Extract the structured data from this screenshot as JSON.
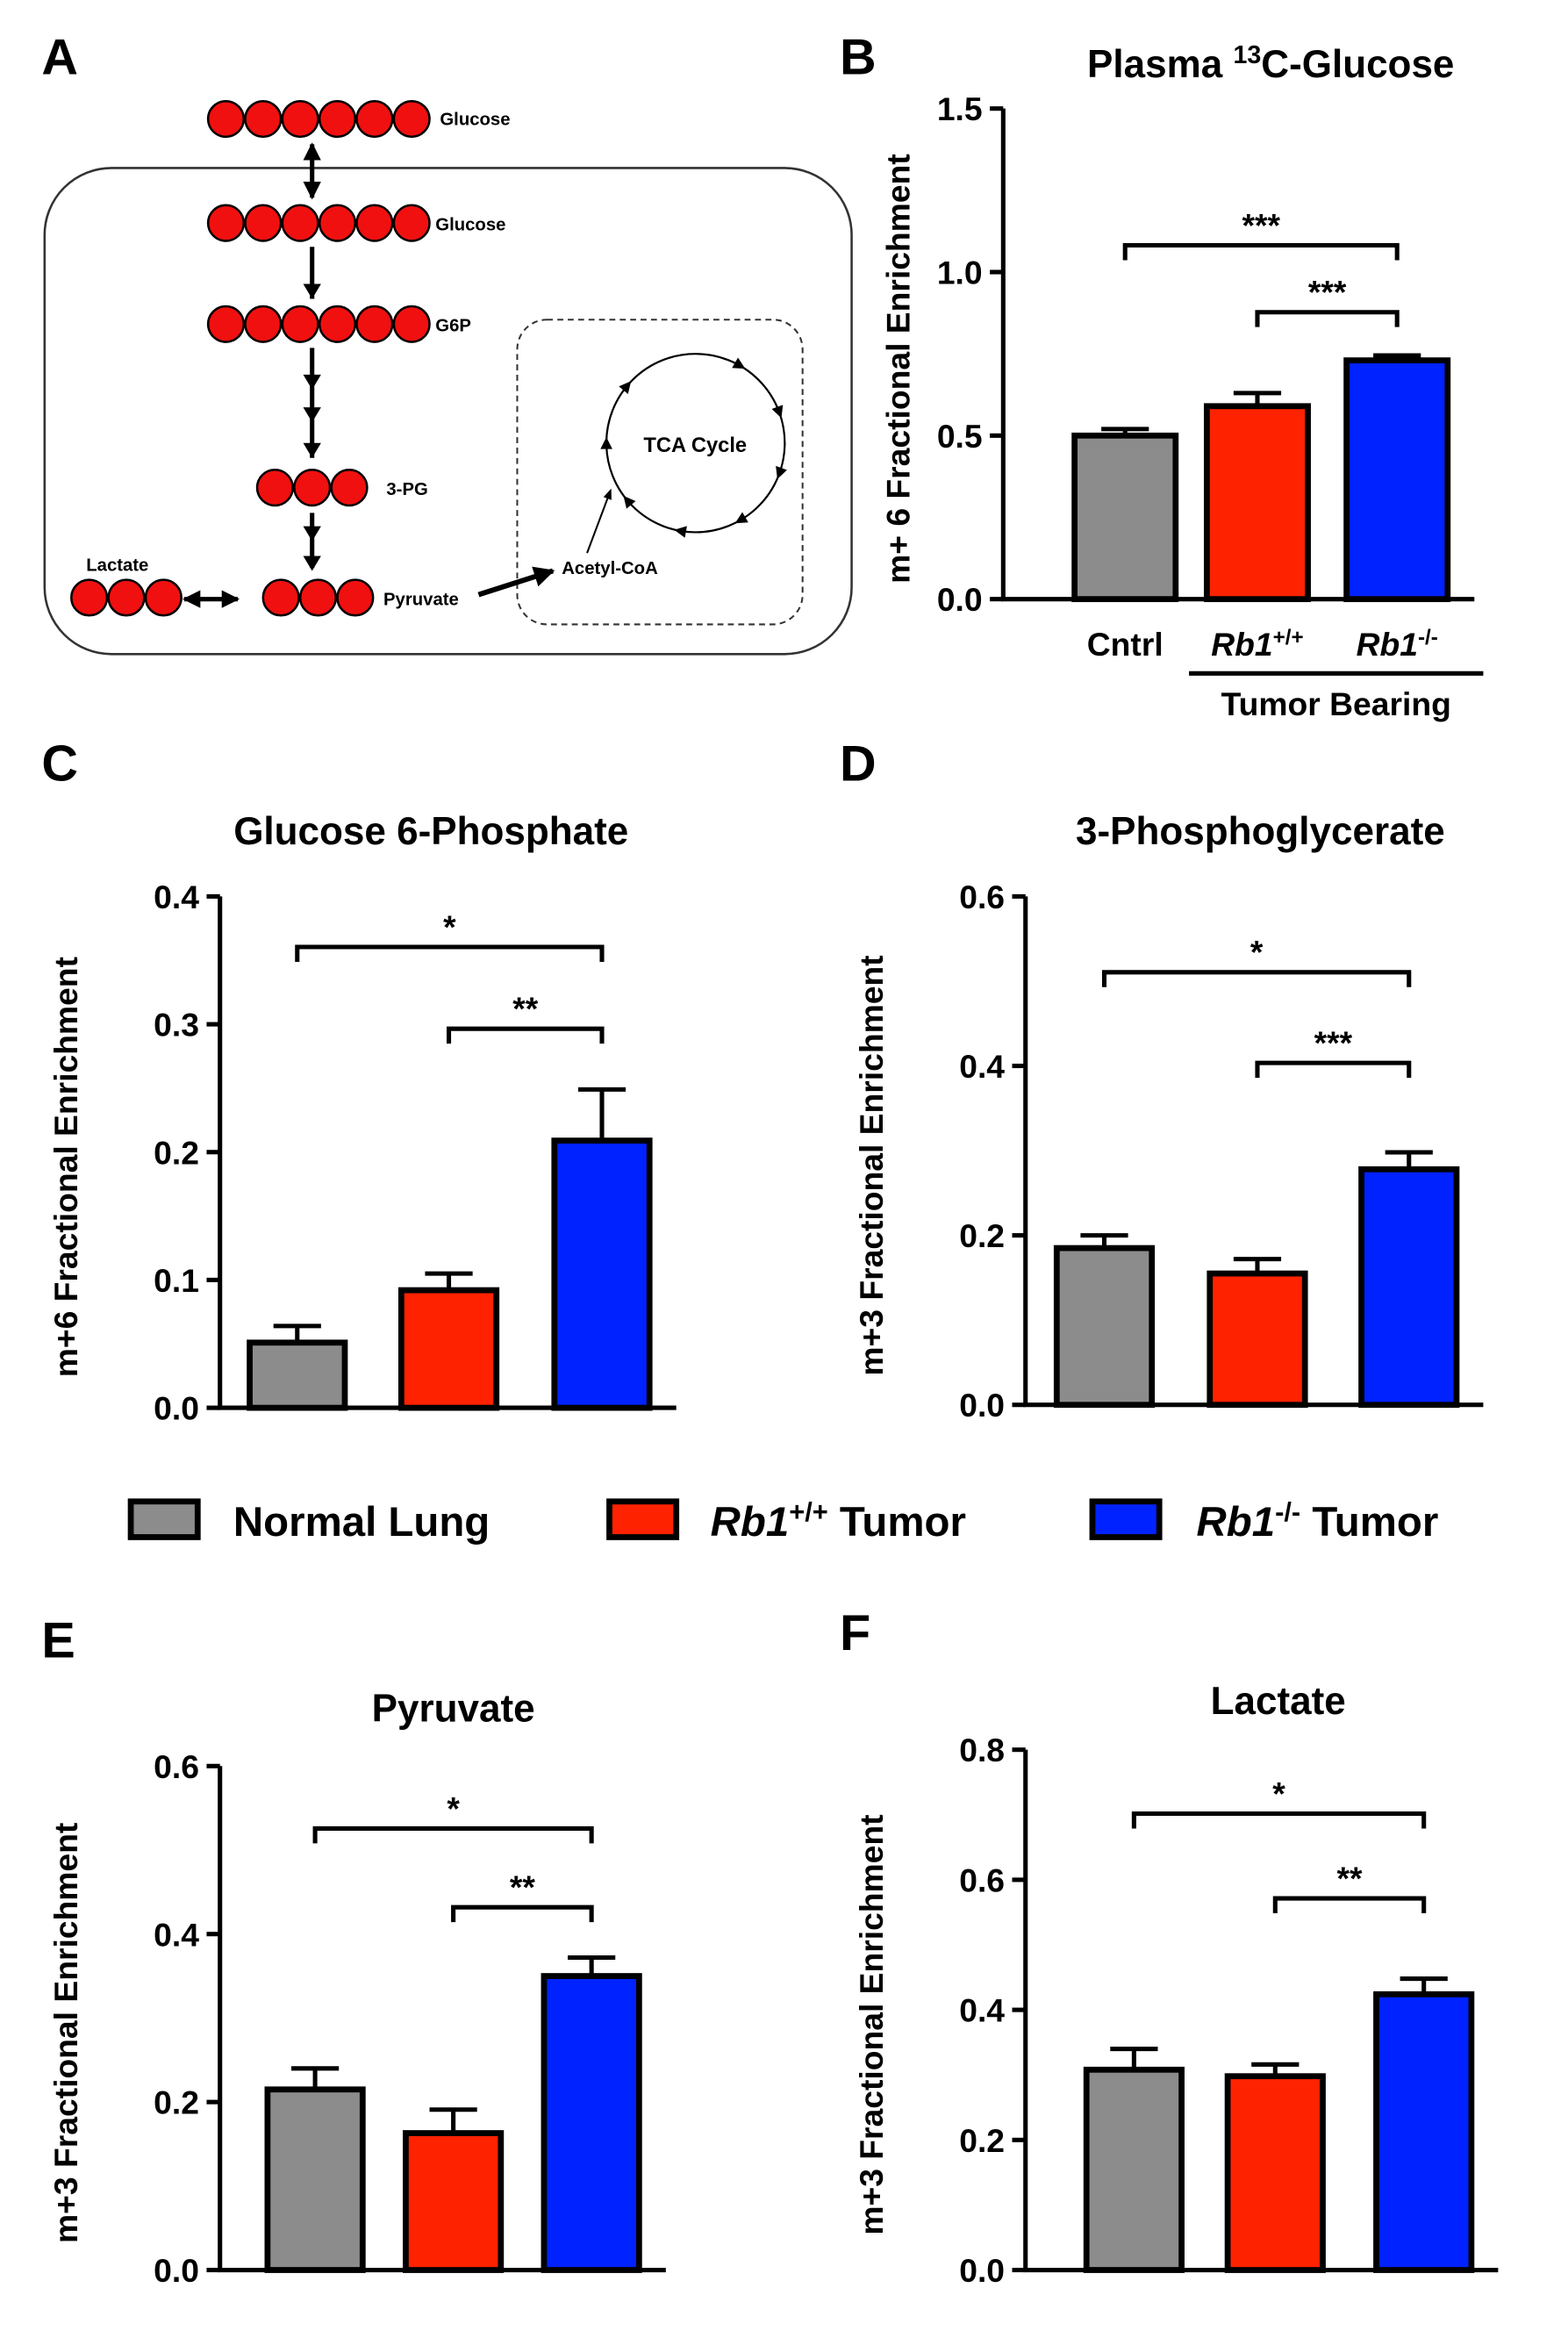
{
  "diagram": {
    "label": "A",
    "molecules": [
      "Glucose",
      "Glucose",
      "G6P",
      "3-PG",
      "Pyruvate",
      "Lactate",
      "Acetyl-CoA"
    ],
    "cycle": "TCA Cycle"
  },
  "legend": {
    "entries": [
      {
        "name": [
          "Normal Lung"
        ],
        "color": "#8c8c8c"
      },
      {
        "name": [
          "Rb1",
          "+/+",
          " Tumor"
        ],
        "color": "#ff2200"
      },
      {
        "name": [
          "Rb1",
          "-/-",
          " Tumor"
        ],
        "color": "#0022ff"
      }
    ]
  },
  "chart_data": [
    {
      "panel": "B",
      "type": "bar",
      "title": [
        "Plasma ",
        "13",
        "C-Glucose"
      ],
      "ylabel": "m+ 6 Fractional Enrichment",
      "categories": [
        [
          "Cntrl"
        ],
        [
          "Rb1",
          "+/+"
        ],
        [
          "Rb1",
          "-/-"
        ]
      ],
      "group_label": "Tumor Bearing",
      "values": [
        0.5,
        0.59,
        0.73
      ],
      "errors": [
        0.02,
        0.04,
        0.015
      ],
      "ylim": [
        0,
        1.5
      ],
      "yticks": [
        {
          "value": 0,
          "label": "0.0"
        },
        0.5,
        {
          "value": 1,
          "label": "1.0"
        },
        1.5
      ],
      "significance": [
        {
          "text": "***",
          "from": 0,
          "to": 2
        },
        {
          "text": "***",
          "from": 1,
          "to": 2
        }
      ]
    },
    {
      "panel": "C",
      "type": "bar",
      "title": [
        "Glucose 6-Phosphate"
      ],
      "ylabel": "m+6 Fractional Enrichment",
      "values": [
        0.051,
        0.092,
        0.209
      ],
      "errors": [
        0.013,
        0.013,
        0.04
      ],
      "ylim": [
        0,
        0.4
      ],
      "yticks": [
        {
          "value": 0,
          "label": "0.0"
        },
        0.1,
        0.2,
        0.3,
        0.4
      ],
      "significance": [
        {
          "text": "*",
          "from": 0,
          "to": 2
        },
        {
          "text": "**",
          "from": 1,
          "to": 2
        }
      ]
    },
    {
      "panel": "D",
      "type": "bar",
      "title": [
        "3-Phosphoglycerate"
      ],
      "ylabel": "m+3 Fractional Enrichment",
      "values": [
        0.185,
        0.155,
        0.278
      ],
      "errors": [
        0.015,
        0.017,
        0.02
      ],
      "ylim": [
        0,
        0.6
      ],
      "yticks": [
        {
          "value": 0,
          "label": "0.0"
        },
        0.2,
        0.4,
        0.6
      ],
      "significance": [
        {
          "text": "*",
          "from": 0,
          "to": 2
        },
        {
          "text": "***",
          "from": 1,
          "to": 2
        }
      ]
    },
    {
      "panel": "E",
      "type": "bar",
      "title": [
        "Pyruvate"
      ],
      "ylabel": "m+3 Fractional Enrichment",
      "values": [
        0.215,
        0.163,
        0.35
      ],
      "errors": [
        0.025,
        0.028,
        0.022
      ],
      "ylim": [
        0,
        0.6
      ],
      "yticks": [
        {
          "value": 0,
          "label": "0.0"
        },
        0.2,
        0.4,
        0.6
      ],
      "significance": [
        {
          "text": "*",
          "from": 0,
          "to": 2
        },
        {
          "text": "**",
          "from": 1,
          "to": 2
        }
      ]
    },
    {
      "panel": "F",
      "type": "bar",
      "title": [
        "Lactate"
      ],
      "ylabel": "m+3 Fractional Enrichment",
      "values": [
        0.308,
        0.298,
        0.424
      ],
      "errors": [
        0.032,
        0.018,
        0.024
      ],
      "ylim": [
        0,
        0.8
      ],
      "yticks": [
        {
          "value": 0,
          "label": "0.0"
        },
        0.2,
        0.4,
        0.6,
        0.8
      ],
      "significance": [
        {
          "text": "*",
          "from": 0,
          "to": 2
        },
        {
          "text": "**",
          "from": 1,
          "to": 2
        }
      ]
    }
  ]
}
